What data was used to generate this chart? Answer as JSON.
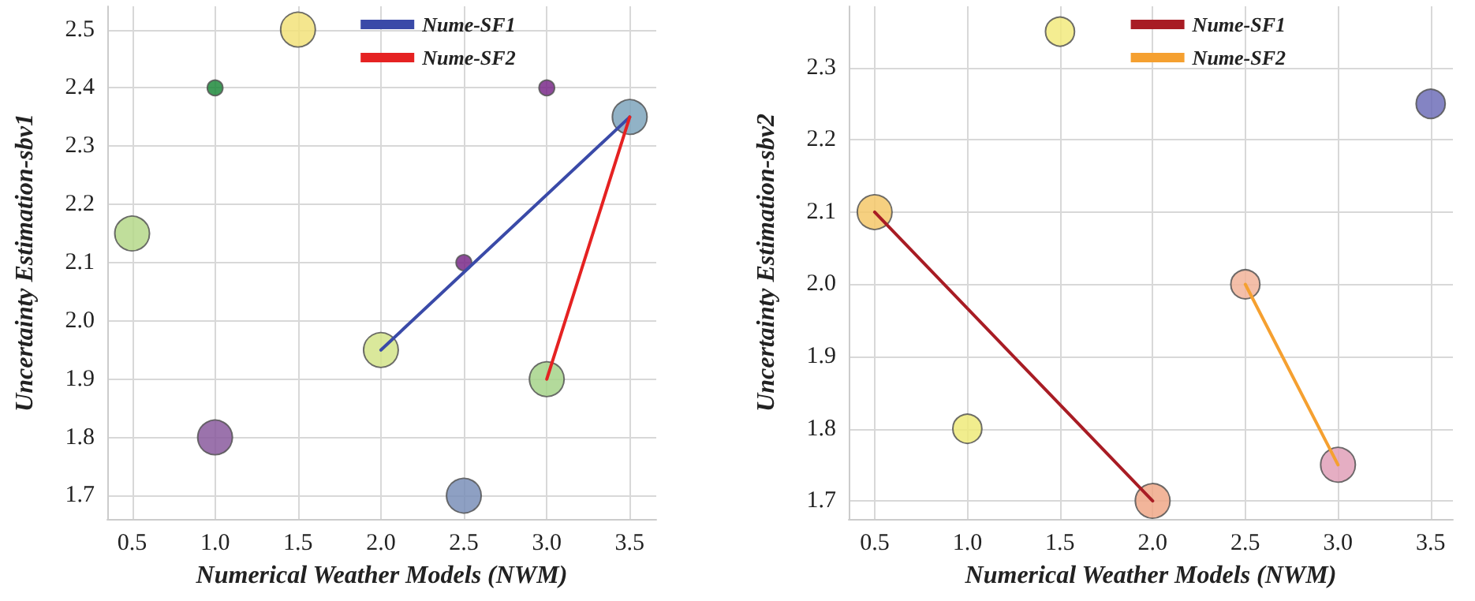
{
  "chart_data": [
    {
      "type": "bubble",
      "xlabel": "Numerical Weather Models (NWM)",
      "ylabel": "Uncertainty Estimation-sbv1",
      "xlim": [
        0.35,
        3.66
      ],
      "xticks": [
        0.5,
        {
          "value": 1,
          "label": "1.0"
        },
        1.5,
        {
          "value": 2,
          "label": "2.0"
        },
        2.5,
        {
          "value": 3,
          "label": "3.0"
        },
        3.5
      ],
      "ylim": [
        1.66,
        2.54
      ],
      "yticks": [
        1.7,
        1.8,
        1.9,
        {
          "value": 2,
          "label": "2.0"
        },
        2.1,
        2.2,
        2.3,
        2.4,
        2.5
      ],
      "grid": true,
      "legend": "top",
      "series": [
        {
          "x": [
            0.5,
            1.0,
            1.0,
            1.5,
            2.0,
            2.5,
            2.5,
            3.0,
            3.0,
            3.5
          ],
          "values": [
            2.15,
            2.4,
            1.8,
            2.5,
            1.95,
            2.1,
            1.7,
            2.4,
            1.9,
            2.35
          ],
          "sizes": [
            1,
            0.2,
            1,
            1,
            1,
            0.2,
            1,
            0.2,
            1,
            1
          ],
          "colors": [
            "#b5d88a",
            "#1e8a3c",
            "#8a5a9e",
            "#f2e27a",
            "#d4e48a",
            "#7a2a8a",
            "#7a8fb8",
            "#7a2a8a",
            "#a6d48a",
            "#7ea4bc"
          ]
        },
        {
          "type": "line",
          "name": "Nume-SF1",
          "color": "#3a4aa8",
          "x": [
            2.0,
            3.5
          ],
          "values": [
            1.95,
            2.35
          ]
        },
        {
          "type": "line",
          "name": "Nume-SF2",
          "color": "#e52222",
          "x": [
            3.0,
            3.5
          ],
          "values": [
            1.9,
            2.35
          ]
        }
      ]
    },
    {
      "type": "bubble",
      "xlabel": "Numerical Weather Models (NWM)",
      "ylabel": "Uncertainty Estimation-sbv2",
      "xlim": [
        0.36,
        3.62
      ],
      "xticks": [
        0.5,
        {
          "value": 1,
          "label": "1.0"
        },
        1.5,
        {
          "value": 2,
          "label": "2.0"
        },
        2.5,
        {
          "value": 3,
          "label": "3.0"
        },
        3.5
      ],
      "ylim": [
        1.675,
        2.385
      ],
      "yticks": [
        1.7,
        1.8,
        1.9,
        {
          "value": 2,
          "label": "2.0"
        },
        2.1,
        2.2,
        2.3
      ],
      "grid": true,
      "legend": "top",
      "series": [
        {
          "x": [
            0.5,
            1.0,
            1.5,
            2.0,
            2.5,
            3.0,
            3.5
          ],
          "values": [
            2.1,
            1.8,
            2.35,
            1.7,
            2.0,
            1.75,
            2.25
          ],
          "sizes": [
            1,
            0.7,
            0.7,
            1,
            0.7,
            1,
            0.7
          ],
          "colors": [
            "#f4c86a",
            "#eeea7a",
            "#f2ea7e",
            "#f0a888",
            "#f2b49a",
            "#e0a0b8",
            "#6e6eb8"
          ]
        },
        {
          "type": "line",
          "name": "Nume-SF1",
          "color": "#a81c24",
          "x": [
            0.5,
            2.0
          ],
          "values": [
            2.1,
            1.7
          ]
        },
        {
          "type": "line",
          "name": "Nume-SF2",
          "color": "#f5a030",
          "x": [
            2.5,
            3.0
          ],
          "values": [
            2.0,
            1.75
          ]
        }
      ]
    }
  ]
}
